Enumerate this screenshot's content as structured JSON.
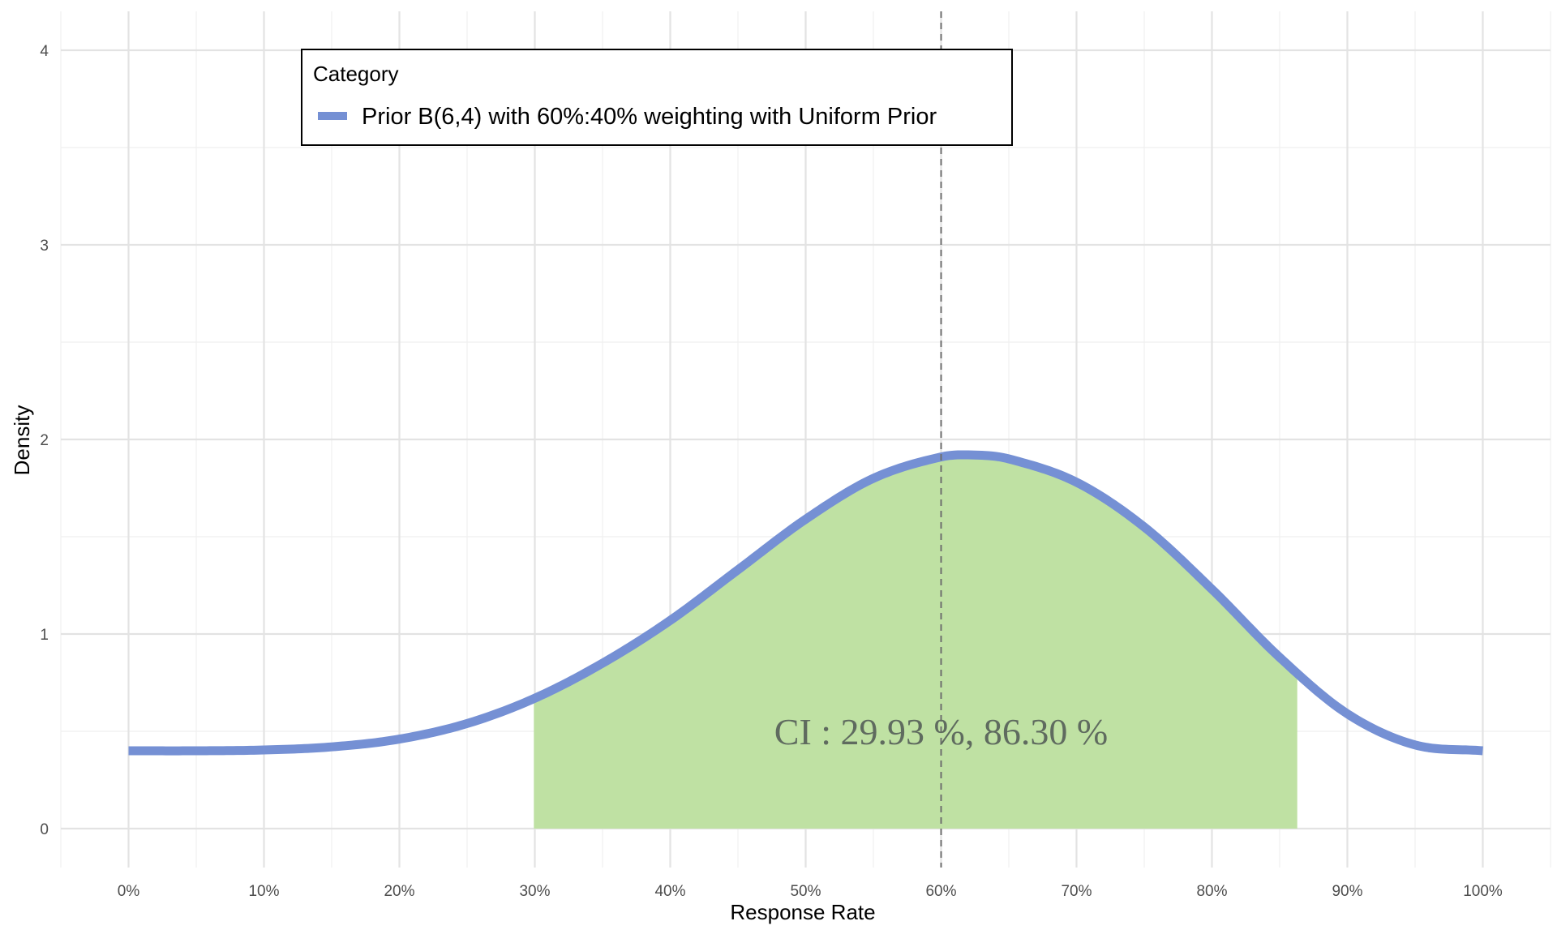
{
  "chart_data": {
    "type": "area",
    "xlabel": "Response Rate",
    "ylabel": "Density",
    "xlim": [
      -0.05,
      1.05
    ],
    "ylim": [
      -0.2,
      4.2
    ],
    "x_ticks": [
      0,
      0.1,
      0.2,
      0.3,
      0.4,
      0.5,
      0.6,
      0.7,
      0.8,
      0.9,
      1.0
    ],
    "x_tick_labels": [
      "0%",
      "10%",
      "20%",
      "30%",
      "40%",
      "50%",
      "60%",
      "70%",
      "80%",
      "90%",
      "100%"
    ],
    "y_ticks": [
      0,
      1,
      2,
      3,
      4
    ],
    "y_tick_labels": [
      "0",
      "1",
      "2",
      "3",
      "4"
    ],
    "grid": true,
    "legend": {
      "title": "Category",
      "placement": "top-left",
      "entries": [
        "Prior B(6,4) with 60%:40% weighting with Uniform Prior"
      ]
    },
    "series": [
      {
        "name": "Prior B(6,4) with 60%:40% weighting with Uniform Prior",
        "color": "#7590d4",
        "x": [
          0,
          0.05,
          0.1,
          0.15,
          0.2,
          0.25,
          0.3,
          0.35,
          0.4,
          0.45,
          0.5,
          0.55,
          0.6,
          0.625,
          0.65,
          0.7,
          0.75,
          0.8,
          0.85,
          0.9,
          0.95,
          1.0
        ],
        "y": [
          0.4,
          0.4,
          0.404,
          0.42,
          0.46,
          0.54,
          0.67,
          0.85,
          1.07,
          1.33,
          1.59,
          1.8,
          1.91,
          1.92,
          1.9,
          1.78,
          1.55,
          1.23,
          0.88,
          0.59,
          0.43,
          0.4
        ]
      }
    ],
    "credible_interval": {
      "lower": 0.2993,
      "upper": 0.863,
      "fill_color": "#bfe1a3"
    },
    "reference_line": {
      "x": 0.6,
      "style": "dashed",
      "color": "#6e6e6e"
    },
    "annotation": {
      "text": "CI : 29.93 %, 86.30 %",
      "x": 0.6,
      "y": 0.5
    }
  }
}
